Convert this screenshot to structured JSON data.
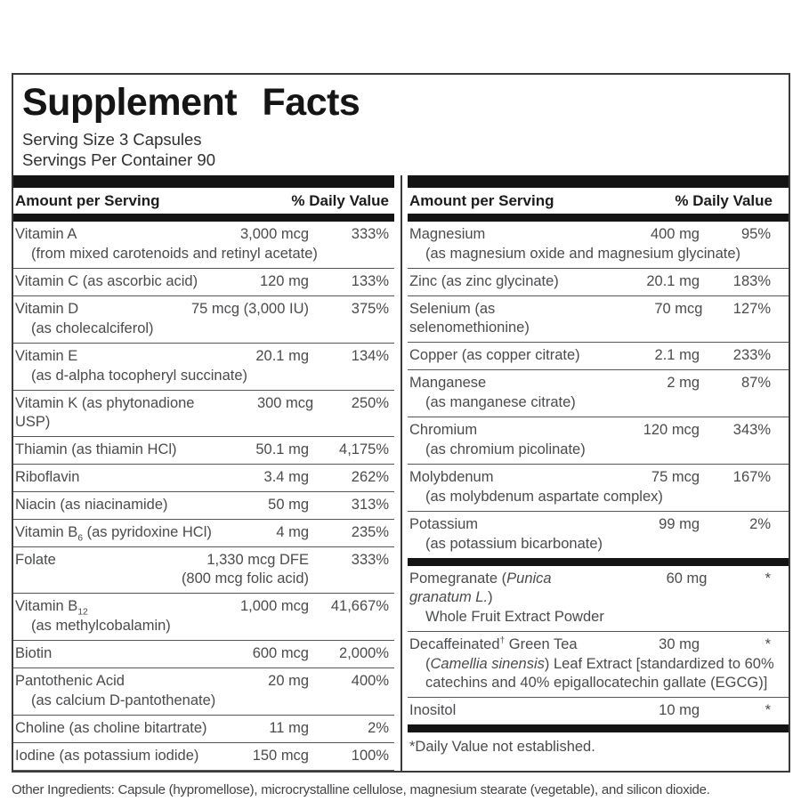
{
  "label": {
    "title": "Supplement Facts",
    "serving_size": "Serving Size 3 Capsules",
    "servings_per_container": "Servings Per Container 90",
    "column_header": {
      "amount": "Amount per Serving",
      "dv": "% Daily Value"
    },
    "footnote": "*Daily Value not established.",
    "other_ingredients": "Other Ingredients: Capsule (hypromellose), microcrystalline cellulose, magnesium stearate (vegetable), and silicon dioxide.",
    "colors": {
      "bar": "#141414",
      "frame": "#3a3a3a",
      "body_text": "#4a4b4d",
      "heading_text": "#1c1c1c"
    }
  },
  "columns": {
    "left": {
      "rows": [
        {
          "name": "Vitamin A",
          "amount": "3,000 mcg",
          "dv": "333%",
          "sub": "(from mixed carotenoids and retinyl acetate)"
        },
        {
          "name": "Vitamin C (as ascorbic acid)",
          "amount": "120 mg",
          "dv": "133%"
        },
        {
          "name": "Vitamin D",
          "amount": "75 mcg (3,000 IU)",
          "dv": "375%",
          "sub": "(as cholecalciferol)"
        },
        {
          "name": "Vitamin E",
          "amount": "20.1 mg",
          "dv": "134%",
          "sub": "(as d-alpha tocopheryl succinate)"
        },
        {
          "name": "Vitamin K (as phytonadione USP)",
          "amount": "300 mcg",
          "dv": "250%"
        },
        {
          "name": "Thiamin (as thiamin HCl)",
          "amount": "50.1 mg",
          "dv": "4,175%"
        },
        {
          "name": "Riboflavin",
          "amount": "3.4 mg",
          "dv": "262%"
        },
        {
          "name": "Niacin (as niacinamide)",
          "amount": "50 mg",
          "dv": "313%"
        },
        {
          "name": "Vitamin B~6~ (as pyridoxine HCl)",
          "amount": "4 mg",
          "dv": "235%"
        },
        {
          "name": "Folate",
          "amount": "1,330 mcg DFE",
          "amount2": "(800 mcg folic acid)",
          "dv": "333%"
        },
        {
          "name": "Vitamin B~12~",
          "amount": "1,000 mcg",
          "dv": "41,667%",
          "sub": "(as methylcobalamin)"
        },
        {
          "name": "Biotin",
          "amount": "600 mcg",
          "dv": "2,000%"
        },
        {
          "name": "Pantothenic Acid",
          "amount": "20 mg",
          "dv": "400%",
          "sub": "(as calcium D-pantothenate)"
        },
        {
          "name": "Choline (as choline bitartrate)",
          "amount": "11 mg",
          "dv": "2%"
        },
        {
          "name": "Iodine (as potassium iodide)",
          "amount": "150 mcg",
          "dv": "100%"
        }
      ]
    },
    "right": {
      "rows": [
        {
          "name": "Magnesium",
          "amount": "400 mg",
          "dv": "95%",
          "sub": "(as magnesium oxide and magnesium glycinate)"
        },
        {
          "name": "Zinc (as zinc glycinate)",
          "amount": "20.1 mg",
          "dv": "183%"
        },
        {
          "name": "Selenium (as selenomethionine)",
          "amount": "70 mcg",
          "dv": "127%"
        },
        {
          "name": "Copper (as copper citrate)",
          "amount": "2.1 mg",
          "dv": "233%"
        },
        {
          "name": "Manganese",
          "amount": "2 mg",
          "dv": "87%",
          "sub": "(as manganese citrate)"
        },
        {
          "name": "Chromium",
          "amount": "120 mcg",
          "dv": "343%",
          "sub": "(as chromium picolinate)"
        },
        {
          "name": "Molybdenum",
          "amount": "75 mcg",
          "dv": "167%",
          "sub": "(as molybdenum aspartate complex)"
        },
        {
          "name": "Potassium",
          "amount": "99 mg",
          "dv": "2%",
          "sub": "(as potassium bicarbonate)"
        },
        {
          "name": "Pomegranate (_Punica granatum L._)",
          "amount": "60 mg",
          "dv": "*",
          "sub": "Whole Fruit Extract Powder",
          "section_break": true
        },
        {
          "name": "Decaffeinated^†^ Green Tea",
          "amount": "30 mg",
          "dv": "*",
          "sub": "(_Camellia sinensis_) Leaf Extract [standardized to 60% catechins and 40% epigallocatechin gallate (EGCG)]"
        },
        {
          "name": "Inositol",
          "amount": "10 mg",
          "dv": "*"
        }
      ]
    }
  }
}
